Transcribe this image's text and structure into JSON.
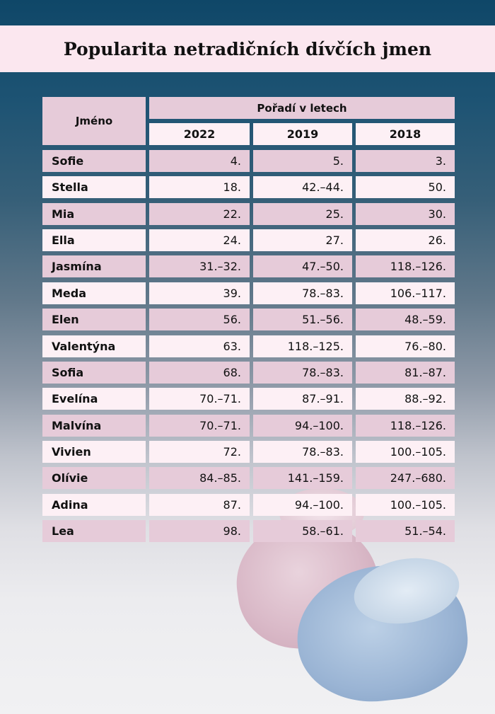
{
  "title": "Popularita netradičních dívčích jmen",
  "colors": {
    "header_pink": "#e6cbd9",
    "row_light": "#fdf0f5",
    "title_bg": "#fbe7ef",
    "bg_top": "#0f4768"
  },
  "table": {
    "name_header": "Jméno",
    "group_header": "Pořadí v letech",
    "years": [
      "2022",
      "2019",
      "2018"
    ],
    "rows": [
      {
        "name": "Sofie",
        "v2022": "4.",
        "v2019": "5.",
        "v2018": "3."
      },
      {
        "name": "Stella",
        "v2022": "18.",
        "v2019": "42.–44.",
        "v2018": "50."
      },
      {
        "name": "Mia",
        "v2022": "22.",
        "v2019": "25.",
        "v2018": "30."
      },
      {
        "name": "Ella",
        "v2022": "24.",
        "v2019": "27.",
        "v2018": "26."
      },
      {
        "name": "Jasmína",
        "v2022": "31.–32.",
        "v2019": "47.–50.",
        "v2018": "118.–126."
      },
      {
        "name": "Meda",
        "v2022": "39.",
        "v2019": "78.–83.",
        "v2018": "106.–117."
      },
      {
        "name": "Elen",
        "v2022": "56.",
        "v2019": "51.–56.",
        "v2018": "48.–59."
      },
      {
        "name": "Valentýna",
        "v2022": "63.",
        "v2019": "118.–125.",
        "v2018": "76.–80."
      },
      {
        "name": "Sofia",
        "v2022": "68.",
        "v2019": "78.–83.",
        "v2018": "81.–87."
      },
      {
        "name": "Evelína",
        "v2022": "70.–71.",
        "v2019": "87.–91.",
        "v2018": "88.–92."
      },
      {
        "name": "Malvína",
        "v2022": "70.–71.",
        "v2019": "94.–100.",
        "v2018": "118.–126."
      },
      {
        "name": "Vivien",
        "v2022": "72.",
        "v2019": "78.–83.",
        "v2018": "100.–105."
      },
      {
        "name": "Olívie",
        "v2022": "84.–85.",
        "v2019": "141.–159.",
        "v2018": "247.–680."
      },
      {
        "name": "Adina",
        "v2022": "87.",
        "v2019": "94.–100.",
        "v2018": "100.–105."
      },
      {
        "name": "Lea",
        "v2022": "98.",
        "v2019": "58.–61.",
        "v2018": "51.–54."
      }
    ]
  }
}
